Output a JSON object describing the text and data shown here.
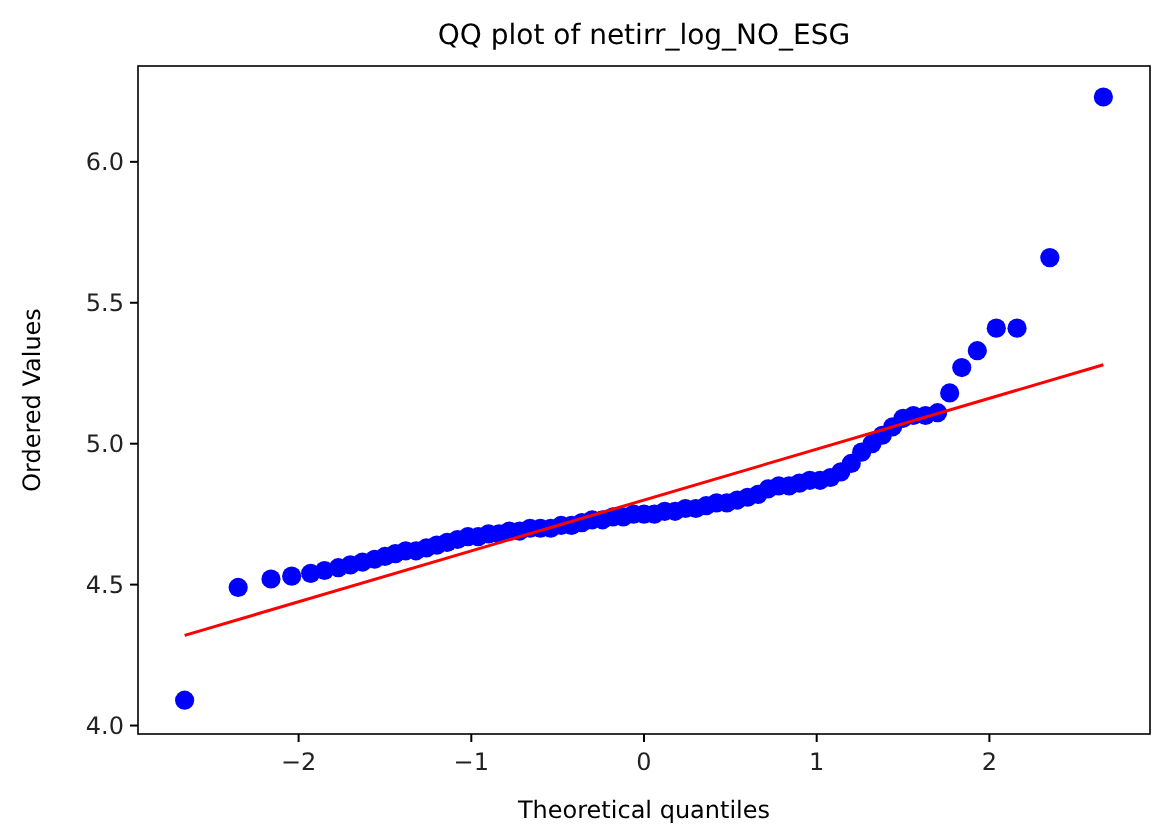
{
  "chart_data": {
    "type": "scatter",
    "title": "QQ plot of netirr_log_NO_ESG",
    "xlabel": "Theoretical quantiles",
    "ylabel": "Ordered Values",
    "xlim": [
      -2.93,
      2.93
    ],
    "ylim": [
      3.97,
      6.34
    ],
    "xticks": [
      {
        "value": -2,
        "label": "−2"
      },
      {
        "value": -1,
        "label": "−1"
      },
      0,
      1,
      2
    ],
    "yticks": [
      {
        "value": 4,
        "label": "4.0"
      },
      {
        "value": 4.5,
        "label": "4.5"
      },
      {
        "value": 5,
        "label": "5.0"
      },
      {
        "value": 5.5,
        "label": "5.5"
      },
      {
        "value": 6,
        "label": "6.0"
      }
    ],
    "grid": false,
    "series": [
      {
        "color": "#0000ff",
        "marker": "circle",
        "x": [
          -2.66,
          -2.35,
          -2.16,
          -2.04,
          -1.93,
          -1.85,
          -1.77,
          -1.7,
          -1.63,
          -1.56,
          -1.5,
          -1.44,
          -1.38,
          -1.32,
          -1.26,
          -1.2,
          -1.14,
          -1.08,
          -1.02,
          -0.96,
          -0.9,
          -0.84,
          -0.78,
          -0.72,
          -0.66,
          -0.6,
          -0.54,
          -0.48,
          -0.42,
          -0.36,
          -0.3,
          -0.24,
          -0.18,
          -0.12,
          -0.06,
          0,
          0.06,
          0.12,
          0.18,
          0.24,
          0.3,
          0.36,
          0.42,
          0.48,
          0.54,
          0.6,
          0.66,
          0.72,
          0.78,
          0.84,
          0.9,
          0.96,
          1.02,
          1.08,
          1.14,
          1.2,
          1.26,
          1.32,
          1.38,
          1.44,
          1.5,
          1.56,
          1.63,
          1.7,
          1.77,
          1.84,
          1.93,
          2.04,
          2.16,
          2.35,
          2.66
        ],
        "values": [
          4.09,
          4.49,
          4.52,
          4.53,
          4.54,
          4.55,
          4.56,
          4.57,
          4.58,
          4.59,
          4.6,
          4.61,
          4.62,
          4.62,
          4.63,
          4.64,
          4.65,
          4.66,
          4.67,
          4.67,
          4.68,
          4.68,
          4.69,
          4.69,
          4.7,
          4.7,
          4.7,
          4.71,
          4.71,
          4.72,
          4.73,
          4.73,
          4.74,
          4.74,
          4.75,
          4.75,
          4.75,
          4.76,
          4.76,
          4.77,
          4.77,
          4.78,
          4.79,
          4.79,
          4.8,
          4.81,
          4.82,
          4.84,
          4.85,
          4.85,
          4.86,
          4.87,
          4.87,
          4.88,
          4.9,
          4.93,
          4.97,
          5.0,
          5.03,
          5.06,
          5.09,
          5.1,
          5.1,
          5.11,
          5.18,
          5.27,
          5.33,
          5.41,
          5.41,
          5.66,
          6.23
        ]
      },
      {
        "type": "line",
        "color": "#ff0000",
        "marker": "none",
        "x": [
          -2.66,
          2.66
        ],
        "values": [
          4.32,
          5.28
        ]
      }
    ]
  }
}
